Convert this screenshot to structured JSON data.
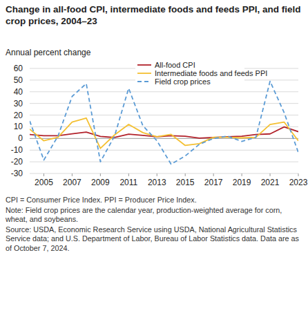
{
  "chart_data": {
    "type": "line",
    "title": "Change in all-food CPI, intermediate foods and feeds PPI, and field crop prices, 2004–23",
    "y_label": "Annual percent change",
    "x": [
      2004,
      2005,
      2006,
      2007,
      2008,
      2009,
      2010,
      2011,
      2012,
      2013,
      2014,
      2015,
      2016,
      2017,
      2018,
      2019,
      2020,
      2021,
      2022,
      2023
    ],
    "xlim": [
      2004,
      2023
    ],
    "xticks": [
      2005,
      2007,
      2009,
      2011,
      2013,
      2015,
      2017,
      2019,
      2021,
      2023
    ],
    "ylim": [
      -30,
      60
    ],
    "yticks": [
      -30,
      -20,
      -10,
      0,
      10,
      20,
      30,
      40,
      50,
      60
    ],
    "grid": true,
    "legend": "top",
    "series": [
      {
        "name": "All-food CPI",
        "color": "#b2222b",
        "line_style": "solid",
        "values": [
          3.4,
          2.4,
          2.4,
          4.0,
          5.5,
          1.8,
          0.8,
          3.7,
          2.6,
          1.4,
          2.4,
          1.9,
          0.3,
          0.9,
          1.4,
          1.9,
          3.4,
          3.9,
          9.9,
          5.8
        ]
      },
      {
        "name": "Intermediate foods and feeds PPI",
        "color": "#f4c032",
        "line_style": "solid",
        "values": [
          8,
          -2,
          1,
          14,
          17.5,
          -8.5,
          3,
          12,
          5,
          1.5,
          3.5,
          -6,
          -4.5,
          1,
          1,
          0.5,
          1,
          12,
          14,
          -2
        ]
      },
      {
        "name": "Field crop prices",
        "color": "#5b9bd5",
        "line_style": "dashed",
        "values": [
          15,
          -18.5,
          2,
          36,
          47,
          -20,
          2,
          43,
          11,
          -2,
          -22,
          -15,
          -5,
          0,
          2,
          -2.5,
          1,
          49,
          22,
          -12
        ]
      }
    ],
    "notes": [
      "CPI = Consumer Price Index. PPI = Producer Price Index.",
      "Note: Field crop prices are the calendar year, production-weighted average for corn, wheat, and soybeans.",
      "Source: USDA, Economic Research Service using USDA, National Agricultural Statistics Service data; and U.S. Department of Labor, Bureau of Labor Statistics data. Data are as of October 7, 2024."
    ]
  }
}
